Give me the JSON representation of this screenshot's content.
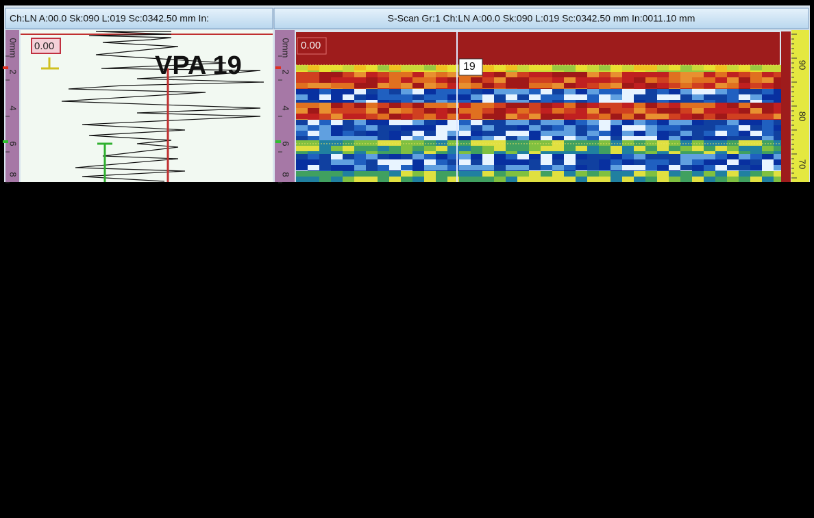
{
  "left_panel": {
    "header": "Ch:LN A:00.0 Sk:090 L:019 Sc:0342.50 mm In:",
    "ruler_labels": [
      "0mm",
      "2",
      "4",
      "6",
      "8"
    ],
    "gate_label": "0.00",
    "overlay_label": "VPA 19"
  },
  "right_panel": {
    "header": "S-Scan Gr:1 Ch:LN A:00.0 Sk:090 L:019 Sc:0342.50 mm In:0011.10 mm",
    "ruler_labels": [
      "0mm",
      "2",
      "4",
      "6",
      "8"
    ],
    "gate_label": "0.00",
    "cursor_label": "19",
    "scale_labels": [
      "90",
      "80",
      "70"
    ]
  }
}
